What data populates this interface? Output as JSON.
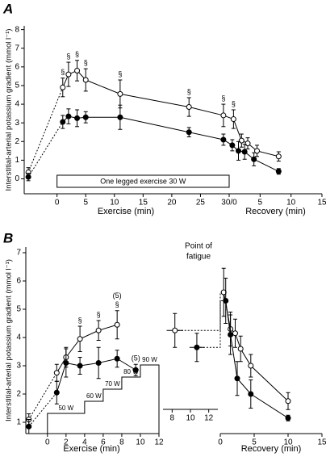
{
  "chart_data": [
    {
      "type": "line",
      "panel": "A",
      "ylabel": "Interstitial-arterial potassium gradient (mmol l⁻¹)",
      "ylim": [
        -0.8,
        8.2
      ],
      "yticks": [
        0,
        1,
        2,
        3,
        4,
        5,
        6,
        7,
        8
      ],
      "exercise_box": "One legged exercise  30 W",
      "segments": [
        {
          "xlabel": "Exercise (min)",
          "xlim": [
            -6,
            30
          ],
          "xticks": [
            0,
            5,
            10,
            15,
            20,
            25,
            {
              "value": 30,
              "label": "30/0"
            }
          ],
          "first_link": "dotted",
          "join_next": "solid"
        },
        {
          "xlabel": "Recovery (min)",
          "xlim": [
            0,
            15
          ],
          "xticks": [
            5,
            10,
            15
          ]
        }
      ],
      "series": [
        {
          "marker": "open",
          "segments": [
            {
              "x": [
                -5,
                1,
                2,
                3.5,
                5,
                11,
                23,
                29
              ],
              "values": [
                0.35,
                4.9,
                5.6,
                5.8,
                5.3,
                4.55,
                3.85,
                3.4
              ],
              "errors": [
                0.25,
                0.5,
                0.65,
                0.55,
                0.6,
                0.75,
                0.5,
                0.6
              ],
              "labels": [
                [],
                [
                  "§"
                ],
                [
                  "§"
                ],
                [
                  "§"
                ],
                [
                  "§"
                ],
                [
                  "§"
                ],
                [
                  "§"
                ],
                [
                  "§"
                ]
              ]
            },
            {
              "x": [
                0.7,
                2,
                3,
                4.5,
                8
              ],
              "values": [
                3.2,
                2.05,
                1.9,
                1.5,
                1.2
              ],
              "errors": [
                0.5,
                0.35,
                0.3,
                0.3,
                0.25
              ],
              "labels": [
                [
                  "§"
                ],
                [],
                [],
                [],
                []
              ]
            }
          ]
        },
        {
          "marker": "filled",
          "segments": [
            {
              "x": [
                -5,
                1,
                2,
                3.5,
                5,
                11,
                23,
                29
              ],
              "values": [
                0.1,
                3.05,
                3.35,
                3.25,
                3.3,
                3.3,
                2.5,
                2.1
              ],
              "errors": [
                0.2,
                0.35,
                0.4,
                0.45,
                0.3,
                0.65,
                0.25,
                0.3
              ],
              "labels": [
                [],
                [],
                [],
                [],
                [],
                [],
                [],
                []
              ]
            },
            {
              "x": [
                0.5,
                1.5,
                2.5,
                4,
                8
              ],
              "values": [
                1.8,
                1.5,
                1.45,
                1.05,
                0.4
              ],
              "errors": [
                0.3,
                0.5,
                0.4,
                0.35,
                0.15
              ],
              "labels": [
                [],
                [],
                [],
                [],
                []
              ]
            }
          ]
        }
      ]
    },
    {
      "type": "line",
      "panel": "B",
      "ylabel": "Interstitial-arterial potassium gradient (mmol l⁻¹)",
      "ylim": [
        0.6,
        7.2
      ],
      "yticks": [
        1,
        2,
        3,
        4,
        5,
        6,
        7
      ],
      "annotation_lines": [
        "Point of",
        "fatigue"
      ],
      "workload": {
        "labels": [
          "50 W",
          "60 W",
          "70 W",
          "80 W",
          "90 W"
        ],
        "x": [
          0,
          4,
          6,
          8,
          10,
          12
        ]
      },
      "segments": [
        {
          "xlabel": "Exercise (min)",
          "xlim": [
            -2.5,
            12
          ],
          "xticks": [
            0,
            2,
            4,
            6,
            8,
            10,
            12
          ],
          "first_link": "dotted"
        },
        {
          "xlim": [
            7,
            13
          ],
          "xticks": [
            8,
            10,
            12
          ],
          "join_next": "dotted"
        },
        {
          "xlabel": "Recovery (min)",
          "xlim": [
            0,
            15
          ],
          "xticks": [
            0,
            5,
            10,
            15
          ]
        }
      ],
      "series": [
        {
          "marker": "open",
          "segments": [
            {
              "x": [
                -2,
                1,
                2,
                3.5,
                5.5,
                7.5
              ],
              "values": [
                1.1,
                2.75,
                3.3,
                3.95,
                4.25,
                4.45
              ],
              "errors": [
                0.2,
                0.3,
                0.35,
                0.45,
                0.35,
                0.5
              ],
              "labels": [
                [],
                [],
                [],
                [
                  "§"
                ],
                [
                  "§"
                ],
                [
                  "§",
                  "(5)"
                ]
              ]
            },
            {
              "x": [
                8.3
              ],
              "values": [
                4.25
              ],
              "errors": [
                0.6
              ],
              "xerrors": [
                0.9
              ],
              "labels": [
                []
              ]
            },
            {
              "x": [
                0.5,
                1.5,
                2.2,
                3,
                4.5,
                10
              ],
              "values": [
                5.6,
                4.3,
                4.15,
                3.6,
                3.0,
                1.75
              ],
              "errors": [
                0.85,
                0.6,
                0.5,
                0.45,
                0.4,
                0.3
              ],
              "labels": [
                [],
                [],
                [],
                [],
                [],
                []
              ]
            }
          ]
        },
        {
          "marker": "filled",
          "segments": [
            {
              "x": [
                -2,
                1,
                2,
                3.5,
                5.5,
                7.5,
                9.5
              ],
              "values": [
                0.85,
                2.05,
                3.1,
                3.0,
                3.1,
                3.25,
                2.85
              ],
              "errors": [
                0.25,
                0.4,
                0.5,
                0.3,
                0.55,
                0.3,
                0.2
              ],
              "labels": [
                [],
                [],
                [],
                [],
                [],
                [],
                [
                  "(5)"
                ]
              ]
            },
            {
              "x": [
                10.7
              ],
              "values": [
                3.65
              ],
              "errors": [
                0.5
              ],
              "xerrors": [
                0.8
              ],
              "labels": [
                []
              ]
            },
            {
              "x": [
                0.8,
                1.5,
                2.5,
                4.5,
                10
              ],
              "values": [
                5.3,
                4.1,
                2.55,
                2.0,
                1.15
              ],
              "errors": [
                0.8,
                0.7,
                0.6,
                0.5,
                0.1
              ],
              "labels": [
                [],
                [],
                [],
                [],
                []
              ]
            }
          ]
        }
      ]
    }
  ]
}
